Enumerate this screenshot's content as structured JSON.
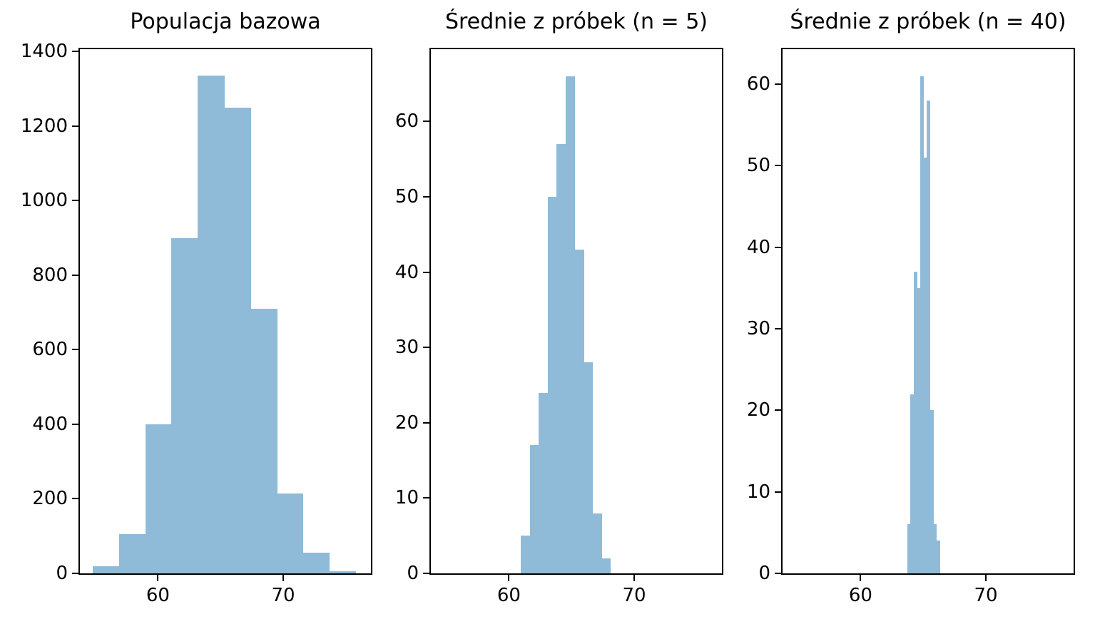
{
  "figure": {
    "background": "#ffffff",
    "bar_color": "#8fbbd9",
    "axis_color": "#000000",
    "text_color": "#000000"
  },
  "chart_data": [
    {
      "type": "bar",
      "kind": "histogram",
      "title": "Populacja bazowa",
      "xlabel": "",
      "ylabel": "",
      "grid": false,
      "legend": null,
      "xlim": [
        53.77,
        77.0
      ],
      "ylim": [
        0,
        1406
      ],
      "xticks": [
        60,
        70
      ],
      "yticks": [
        0,
        200,
        400,
        600,
        800,
        1000,
        1200,
        1400
      ],
      "bin_start": 54.78,
      "bin_width": 2.1,
      "counts": [
        20,
        105,
        400,
        900,
        1335,
        1250,
        710,
        215,
        55,
        5
      ]
    },
    {
      "type": "bar",
      "kind": "histogram",
      "title": "Średnie z próbek (n = 5)",
      "xlabel": "",
      "ylabel": "",
      "grid": false,
      "legend": null,
      "xlim": [
        53.77,
        77.0
      ],
      "ylim": [
        0,
        69.6
      ],
      "xticks": [
        60,
        70
      ],
      "yticks": [
        0,
        10,
        20,
        30,
        40,
        50,
        60
      ],
      "bin_start": 60.96,
      "bin_width": 0.713,
      "counts": [
        5,
        17,
        24,
        50,
        57,
        66,
        43,
        28,
        8,
        2
      ]
    },
    {
      "type": "bar",
      "kind": "histogram",
      "title": "Średnie z próbek (n = 40)",
      "xlabel": "",
      "ylabel": "",
      "grid": false,
      "legend": null,
      "xlim": [
        53.77,
        77.0
      ],
      "ylim": [
        0,
        64.3
      ],
      "xticks": [
        60,
        70
      ],
      "yticks": [
        0,
        10,
        20,
        30,
        40,
        50,
        60
      ],
      "bin_start": 63.73,
      "bin_width": 0.258,
      "counts": [
        6,
        22,
        37,
        35,
        61,
        51,
        58,
        20,
        6,
        4
      ]
    }
  ]
}
